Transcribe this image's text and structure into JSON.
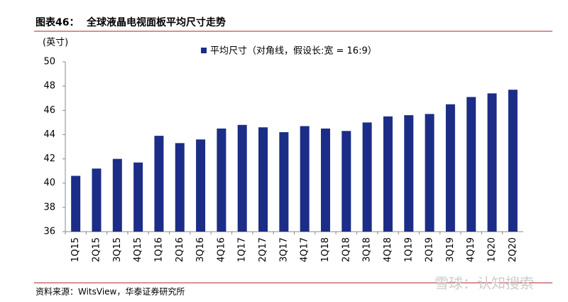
{
  "header": {
    "label": "图表46：",
    "title": "全球液晶电视面板平均尺寸走势"
  },
  "chart_data": {
    "type": "bar",
    "unit_label": "(英寸)",
    "categories": [
      "1Q15",
      "2Q15",
      "3Q15",
      "4Q15",
      "1Q16",
      "2Q16",
      "3Q16",
      "4Q16",
      "1Q17",
      "2Q17",
      "3Q17",
      "4Q17",
      "1Q18",
      "2Q18",
      "3Q18",
      "4Q18",
      "1Q19",
      "2Q19",
      "3Q19",
      "4Q19",
      "1Q20",
      "2Q20"
    ],
    "series": [
      {
        "name": "平均尺寸（对角线，假设长:宽 = 16:9）",
        "color": "#1b2d86",
        "values": [
          40.6,
          41.2,
          42.0,
          41.7,
          43.9,
          43.3,
          43.6,
          44.5,
          44.8,
          44.6,
          44.2,
          44.7,
          44.5,
          44.3,
          45.0,
          45.5,
          45.6,
          45.7,
          46.5,
          47.1,
          47.4,
          47.7
        ]
      }
    ],
    "ylim": [
      36,
      50
    ],
    "yticks": [
      36,
      38,
      40,
      42,
      44,
      46,
      48,
      50
    ],
    "grid": false,
    "legend": "top"
  },
  "footer": {
    "source": "资料来源：WitsView，华泰证券研究所",
    "watermark": "雪球：认知搜索"
  }
}
